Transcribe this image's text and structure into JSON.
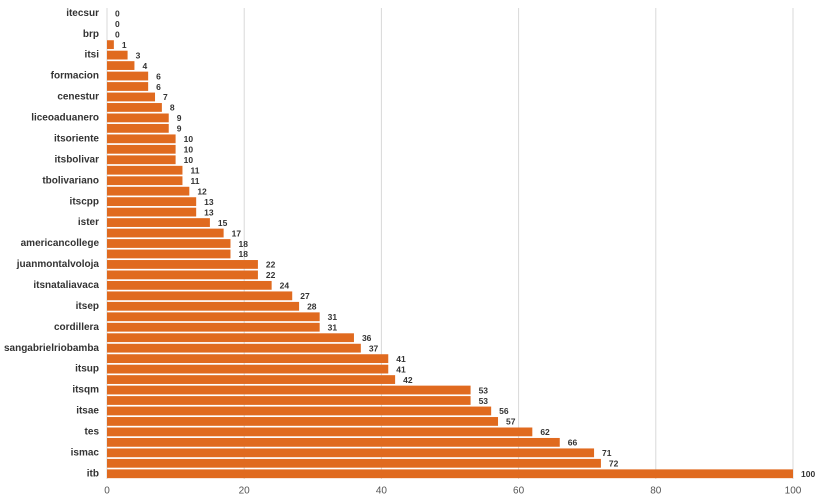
{
  "chart_data": {
    "type": "bar",
    "orientation": "horizontal",
    "categories": [
      "itecsur",
      null,
      "brp",
      null,
      "itsi",
      null,
      "formacion",
      null,
      "cenestur",
      null,
      "liceoaduanero",
      null,
      "itsoriente",
      null,
      "itsbolivar",
      null,
      "tbolivariano",
      null,
      "itscpp",
      null,
      "ister",
      null,
      "americancollege",
      null,
      "juanmontalvoloja",
      null,
      "itsnataliavaca",
      null,
      "itsep",
      null,
      "cordillera",
      null,
      "sangabrielriobamba",
      null,
      "itsup",
      null,
      "itsqm",
      null,
      "itsae",
      null,
      "tes",
      null,
      "ismac",
      null,
      "itb"
    ],
    "values": [
      0,
      0,
      0,
      1,
      3,
      4,
      6,
      6,
      7,
      8,
      9,
      9,
      10,
      10,
      10,
      11,
      11,
      12,
      13,
      13,
      15,
      17,
      18,
      18,
      22,
      22,
      24,
      27,
      28,
      31,
      31,
      36,
      37,
      41,
      41,
      42,
      53,
      53,
      56,
      57,
      62,
      66,
      71,
      72,
      100
    ],
    "color": "#e06a1f",
    "xlim": [
      0,
      100
    ],
    "xticks": [
      0,
      20,
      40,
      60,
      80,
      100
    ],
    "grid": true
  }
}
